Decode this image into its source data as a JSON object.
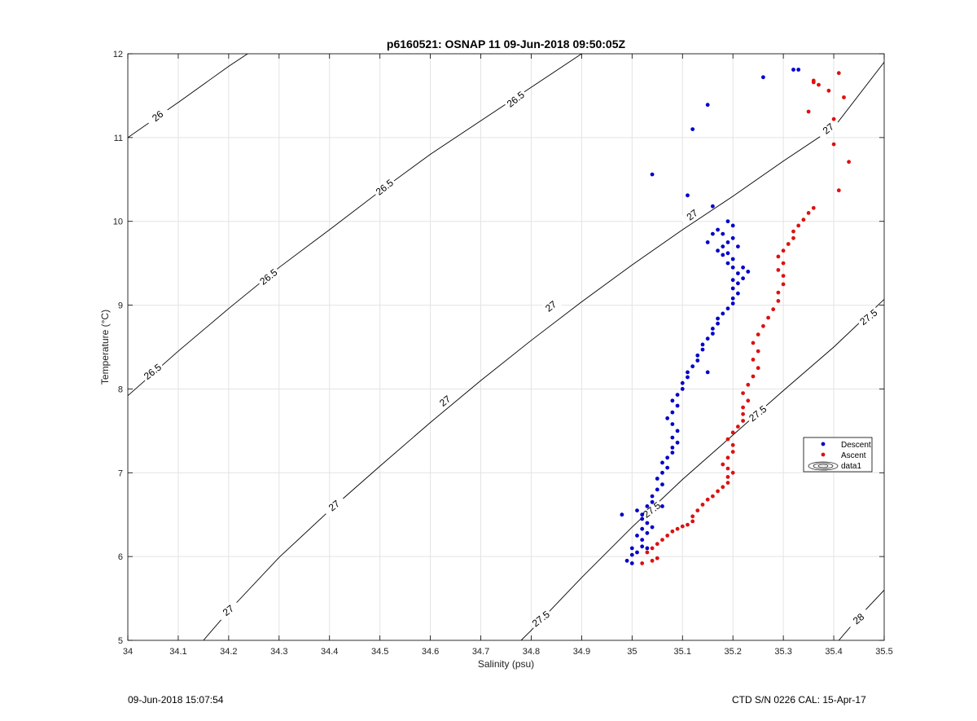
{
  "chart_data": {
    "type": "scatter",
    "title": "p6160521: OSNAP 11 09-Jun-2018 09:50:05Z",
    "xlabel": "Salinity (psu)",
    "ylabel": "Temperature (°C)",
    "xlim": [
      34,
      35.5
    ],
    "ylim": [
      5,
      12
    ],
    "xticks": [
      "34",
      "34.1",
      "34.2",
      "34.3",
      "34.4",
      "34.5",
      "34.6",
      "34.7",
      "34.8",
      "34.9",
      "35",
      "35.1",
      "35.2",
      "35.3",
      "35.4",
      "35.5"
    ],
    "yticks": [
      "5",
      "6",
      "7",
      "8",
      "9",
      "10",
      "11",
      "12"
    ],
    "grid": true,
    "legend_position": "right",
    "contour_levels": [
      26,
      26.5,
      27,
      27.5,
      28
    ],
    "contour_labels": [
      {
        "text": "26",
        "x": 34.06,
        "y": 11.25
      },
      {
        "text": "26.5",
        "x": 34.05,
        "y": 8.2
      },
      {
        "text": "26.5",
        "x": 34.28,
        "y": 9.33
      },
      {
        "text": "26.5",
        "x": 34.51,
        "y": 10.4
      },
      {
        "text": "26.5",
        "x": 34.77,
        "y": 11.45
      },
      {
        "text": "27",
        "x": 34.2,
        "y": 5.35
      },
      {
        "text": "27",
        "x": 34.41,
        "y": 6.6
      },
      {
        "text": "27",
        "x": 34.63,
        "y": 7.85
      },
      {
        "text": "27",
        "x": 34.84,
        "y": 8.98
      },
      {
        "text": "27",
        "x": 35.12,
        "y": 10.07
      },
      {
        "text": "27",
        "x": 35.39,
        "y": 11.1
      },
      {
        "text": "27.5",
        "x": 34.82,
        "y": 5.25
      },
      {
        "text": "27.5",
        "x": 35.04,
        "y": 6.55
      },
      {
        "text": "27.5",
        "x": 35.25,
        "y": 7.7
      },
      {
        "text": "27.5",
        "x": 35.47,
        "y": 8.85
      },
      {
        "text": "28",
        "x": 35.45,
        "y": 5.25
      }
    ],
    "series": [
      {
        "name": "Descent",
        "color": "#0000cc",
        "points": [
          [
            34.99,
            5.95
          ],
          [
            35.0,
            5.92
          ],
          [
            35.0,
            6.02
          ],
          [
            35.01,
            6.05
          ],
          [
            35.0,
            6.1
          ],
          [
            35.02,
            6.12
          ],
          [
            35.02,
            6.2
          ],
          [
            35.01,
            6.25
          ],
          [
            35.03,
            6.28
          ],
          [
            35.02,
            6.33
          ],
          [
            35.03,
            6.4
          ],
          [
            35.02,
            6.45
          ],
          [
            35.02,
            6.5
          ],
          [
            35.01,
            6.55
          ],
          [
            35.03,
            6.6
          ],
          [
            35.04,
            6.65
          ],
          [
            35.04,
            6.72
          ],
          [
            35.05,
            6.8
          ],
          [
            35.06,
            6.86
          ],
          [
            35.05,
            6.93
          ],
          [
            35.06,
            7.0
          ],
          [
            35.07,
            7.06
          ],
          [
            35.06,
            7.12
          ],
          [
            35.07,
            7.18
          ],
          [
            35.08,
            7.24
          ],
          [
            35.08,
            7.3
          ],
          [
            35.09,
            7.36
          ],
          [
            35.08,
            7.42
          ],
          [
            35.09,
            7.5
          ],
          [
            35.08,
            7.58
          ],
          [
            35.07,
            7.65
          ],
          [
            35.08,
            7.72
          ],
          [
            35.09,
            7.8
          ],
          [
            35.08,
            7.86
          ],
          [
            35.09,
            7.93
          ],
          [
            35.1,
            8.0
          ],
          [
            35.1,
            8.07
          ],
          [
            35.11,
            8.14
          ],
          [
            35.11,
            8.2
          ],
          [
            35.12,
            8.27
          ],
          [
            35.13,
            8.34
          ],
          [
            35.13,
            8.4
          ],
          [
            35.14,
            8.47
          ],
          [
            35.14,
            8.53
          ],
          [
            35.15,
            8.6
          ],
          [
            35.16,
            8.66
          ],
          [
            35.16,
            8.72
          ],
          [
            35.17,
            8.78
          ],
          [
            35.17,
            8.84
          ],
          [
            35.18,
            8.9
          ],
          [
            35.19,
            8.96
          ],
          [
            35.2,
            9.02
          ],
          [
            35.2,
            9.08
          ],
          [
            35.21,
            9.14
          ],
          [
            35.2,
            9.2
          ],
          [
            35.21,
            9.26
          ],
          [
            35.22,
            9.32
          ],
          [
            35.21,
            9.38
          ],
          [
            35.23,
            9.4
          ],
          [
            35.2,
            9.45
          ],
          [
            35.19,
            9.5
          ],
          [
            35.2,
            9.55
          ],
          [
            35.18,
            9.6
          ],
          [
            35.17,
            9.65
          ],
          [
            35.18,
            9.7
          ],
          [
            35.19,
            9.75
          ],
          [
            35.2,
            9.8
          ],
          [
            35.18,
            9.85
          ],
          [
            35.17,
            9.9
          ],
          [
            35.2,
            9.95
          ],
          [
            35.19,
            10.0
          ],
          [
            35.16,
            9.85
          ],
          [
            35.15,
            9.75
          ],
          [
            35.16,
            10.18
          ],
          [
            35.11,
            10.31
          ],
          [
            35.04,
            10.56
          ],
          [
            35.12,
            11.1
          ],
          [
            35.15,
            11.39
          ],
          [
            35.26,
            11.72
          ],
          [
            35.32,
            11.81
          ],
          [
            35.33,
            11.81
          ],
          [
            34.98,
            6.5
          ],
          [
            35.04,
            6.35
          ],
          [
            35.03,
            6.1
          ],
          [
            35.06,
            6.6
          ],
          [
            35.15,
            8.2
          ],
          [
            35.2,
            9.3
          ],
          [
            35.22,
            9.45
          ],
          [
            35.19,
            9.62
          ],
          [
            35.21,
            9.7
          ]
        ]
      },
      {
        "name": "Ascent",
        "color": "#dd1111",
        "points": [
          [
            35.02,
            5.92
          ],
          [
            35.04,
            5.95
          ],
          [
            35.05,
            5.98
          ],
          [
            35.03,
            6.05
          ],
          [
            35.04,
            6.1
          ],
          [
            35.05,
            6.15
          ],
          [
            35.06,
            6.2
          ],
          [
            35.07,
            6.25
          ],
          [
            35.08,
            6.3
          ],
          [
            35.09,
            6.33
          ],
          [
            35.1,
            6.36
          ],
          [
            35.11,
            6.38
          ],
          [
            35.12,
            6.42
          ],
          [
            35.12,
            6.48
          ],
          [
            35.13,
            6.55
          ],
          [
            35.14,
            6.62
          ],
          [
            35.15,
            6.68
          ],
          [
            35.16,
            6.72
          ],
          [
            35.17,
            6.78
          ],
          [
            35.18,
            6.83
          ],
          [
            35.19,
            6.88
          ],
          [
            35.19,
            6.95
          ],
          [
            35.2,
            7.0
          ],
          [
            35.19,
            7.05
          ],
          [
            35.18,
            7.1
          ],
          [
            35.19,
            7.18
          ],
          [
            35.2,
            7.25
          ],
          [
            35.2,
            7.33
          ],
          [
            35.19,
            7.4
          ],
          [
            35.2,
            7.48
          ],
          [
            35.21,
            7.55
          ],
          [
            35.22,
            7.62
          ],
          [
            35.22,
            7.7
          ],
          [
            35.22,
            7.78
          ],
          [
            35.23,
            7.86
          ],
          [
            35.22,
            7.95
          ],
          [
            35.23,
            8.05
          ],
          [
            35.24,
            8.15
          ],
          [
            35.25,
            8.25
          ],
          [
            35.24,
            8.35
          ],
          [
            35.25,
            8.45
          ],
          [
            35.24,
            8.55
          ],
          [
            35.25,
            8.65
          ],
          [
            35.26,
            8.75
          ],
          [
            35.27,
            8.85
          ],
          [
            35.28,
            8.95
          ],
          [
            35.29,
            9.05
          ],
          [
            35.29,
            9.15
          ],
          [
            35.3,
            9.25
          ],
          [
            35.3,
            9.35
          ],
          [
            35.29,
            9.42
          ],
          [
            35.3,
            9.5
          ],
          [
            35.29,
            9.58
          ],
          [
            35.3,
            9.65
          ],
          [
            35.31,
            9.73
          ],
          [
            35.32,
            9.8
          ],
          [
            35.32,
            9.88
          ],
          [
            35.33,
            9.95
          ],
          [
            35.34,
            10.02
          ],
          [
            35.35,
            10.1
          ],
          [
            35.36,
            10.16
          ],
          [
            35.35,
            11.31
          ],
          [
            35.36,
            11.68
          ],
          [
            35.37,
            11.63
          ],
          [
            35.39,
            11.56
          ],
          [
            35.4,
            11.22
          ],
          [
            35.41,
            11.77
          ],
          [
            35.42,
            11.48
          ],
          [
            35.43,
            10.71
          ],
          [
            35.4,
            10.92
          ],
          [
            35.41,
            10.37
          ],
          [
            35.36,
            11.66
          ]
        ]
      },
      {
        "name": "data1",
        "color": "#000000",
        "points": []
      }
    ]
  },
  "footer": {
    "left": "09-Jun-2018 15:07:54",
    "right": "CTD S/N 0226  CAL: 15-Apr-17"
  }
}
